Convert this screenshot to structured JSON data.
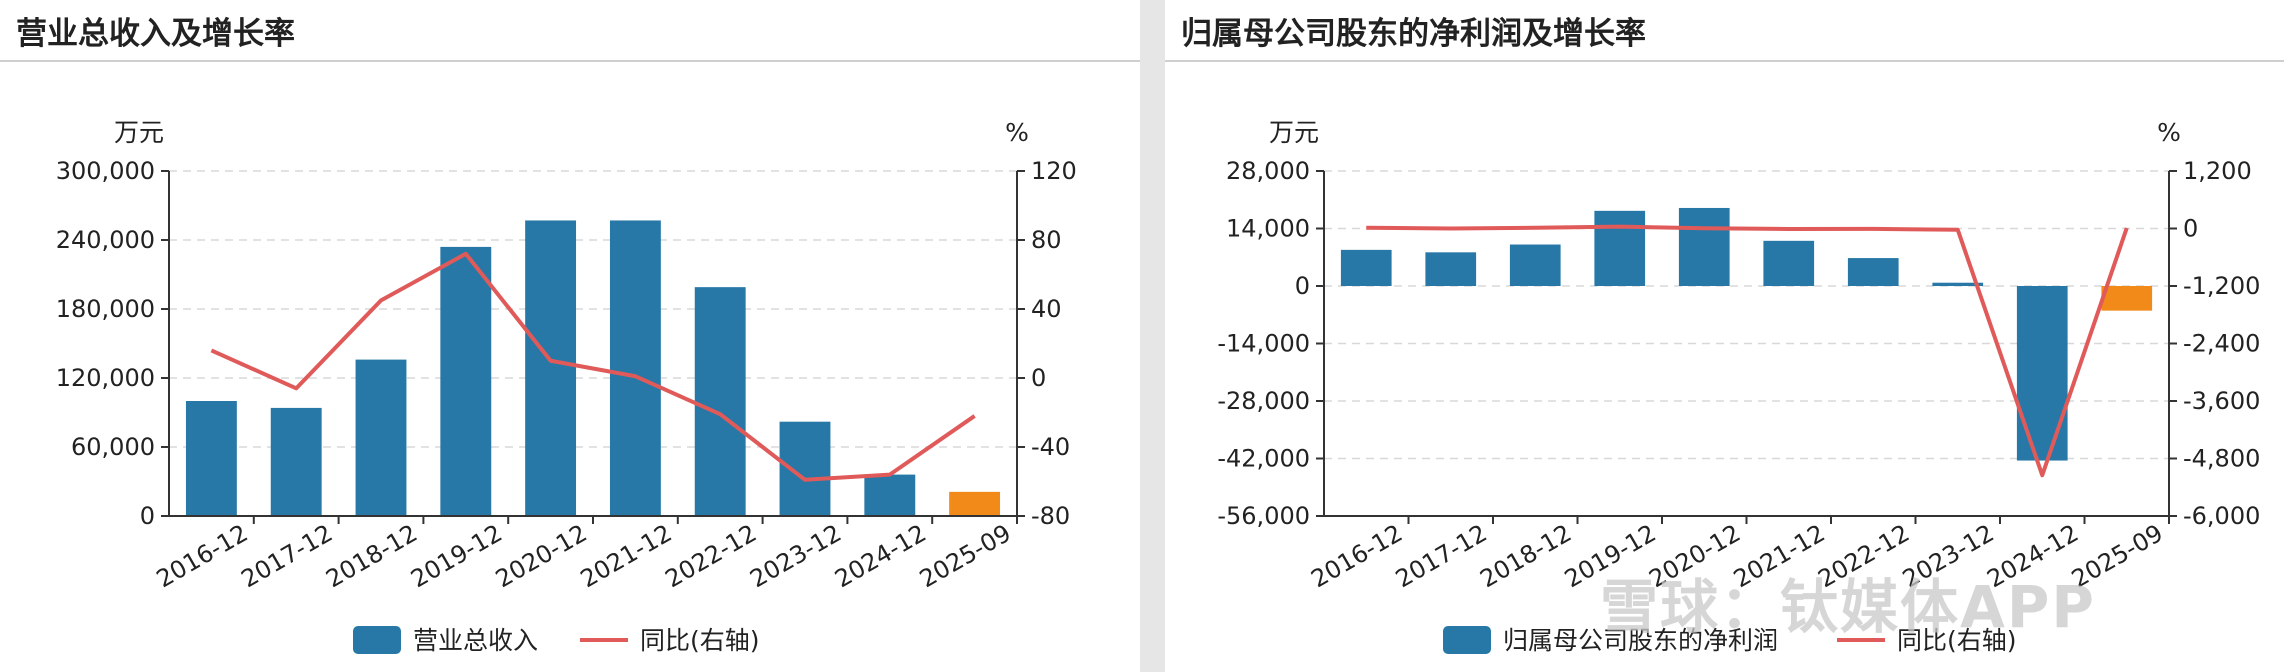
{
  "charts": [
    {
      "title": "营业总收入及增长率",
      "chart_data": {
        "type": "bar",
        "categories": [
          "2016-12",
          "2017-12",
          "2018-12",
          "2019-12",
          "2020-12",
          "2021-12",
          "2022-12",
          "2023-12",
          "2024-12",
          "2025-09"
        ],
        "series": [
          {
            "name": "营业总收入",
            "axis": "left",
            "type": "bar",
            "color": "#2778a6",
            "values": [
              100000,
              94000,
              136000,
              234000,
              257000,
              257000,
              199000,
              82000,
              36000,
              21000
            ],
            "colors": [
              "#2778a6",
              "#2778a6",
              "#2778a6",
              "#2778a6",
              "#2778a6",
              "#2778a6",
              "#2778a6",
              "#2778a6",
              "#2778a6",
              "#f28a1a"
            ]
          },
          {
            "name": "同比(右轴)",
            "axis": "right",
            "type": "line",
            "color": "#e05a5a",
            "values": [
              16,
              -6,
              45,
              72,
              10,
              1,
              -21,
              -59,
              -56,
              -22
            ]
          }
        ],
        "y_left": {
          "unit": "万元",
          "min": 0,
          "max": 300000,
          "ticks": [
            "300,000",
            "240,000",
            "180,000",
            "120,000",
            "60,000",
            "0"
          ]
        },
        "y_right": {
          "unit": "%",
          "min": -80,
          "max": 120,
          "ticks": [
            "120",
            "80",
            "40",
            "0",
            "-40",
            "-80"
          ]
        },
        "grid": true,
        "legend": "bottom-center"
      }
    },
    {
      "title": "归属母公司股东的净利润及增长率",
      "chart_data": {
        "type": "bar",
        "categories": [
          "2016-12",
          "2017-12",
          "2018-12",
          "2019-12",
          "2020-12",
          "2021-12",
          "2022-12",
          "2023-12",
          "2024-12",
          "2025-09"
        ],
        "series": [
          {
            "name": "归属母公司股东的净利润",
            "axis": "left",
            "type": "bar",
            "color": "#2778a6",
            "values": [
              8800,
              8200,
              10100,
              18300,
              19000,
              11000,
              6800,
              800,
              -42500,
              -6000
            ],
            "colors": [
              "#2778a6",
              "#2778a6",
              "#2778a6",
              "#2778a6",
              "#2778a6",
              "#2778a6",
              "#2778a6",
              "#2778a6",
              "#2778a6",
              "#f28a1a"
            ]
          },
          {
            "name": "同比(右轴)",
            "axis": "right",
            "type": "line",
            "color": "#e05a5a",
            "values": [
              15,
              0,
              15,
              40,
              5,
              -10,
              -8,
              -25,
              -5150,
              10
            ]
          }
        ],
        "y_left": {
          "unit": "万元",
          "min": -56000,
          "max": 28000,
          "ticks": [
            "28,000",
            "14,000",
            "0",
            "-14,000",
            "-28,000",
            "-42,000",
            "-56,000"
          ]
        },
        "y_right": {
          "unit": "%",
          "min": -6000,
          "max": 1200,
          "ticks": [
            "1,200",
            "0",
            "-1,200",
            "-2,400",
            "-3,600",
            "-4,800",
            "-6,000"
          ]
        },
        "grid": true,
        "legend": "bottom-center"
      }
    }
  ],
  "watermark": "雪球：钛媒体APP"
}
